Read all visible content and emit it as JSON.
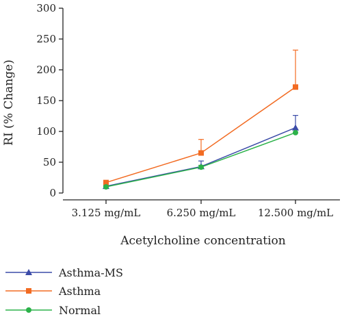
{
  "chart_data": {
    "type": "line",
    "title": "",
    "xlabel": "Acetylcholine concentration",
    "ylabel": "RI (% Change)",
    "categories": [
      "3.125 mg/mL",
      "6.250 mg/mL",
      "12.500 mg/mL"
    ],
    "ylim": [
      0,
      300
    ],
    "yticks": [
      0,
      50,
      100,
      150,
      200,
      250,
      300
    ],
    "grid": false,
    "legend_position": "bottom-left",
    "series": [
      {
        "name": "Asthma-MS",
        "color": "#3b4ba8",
        "marker": "triangle",
        "values": [
          11,
          43,
          106
        ],
        "error": [
          1,
          9,
          20
        ]
      },
      {
        "name": "Asthma",
        "color": "#f26b22",
        "marker": "square",
        "values": [
          17,
          65,
          172
        ],
        "error": [
          2,
          22,
          60
        ]
      },
      {
        "name": "Normal",
        "color": "#2cb24a",
        "marker": "circle",
        "values": [
          10,
          42,
          98
        ],
        "error": [
          1,
          3,
          5
        ]
      }
    ]
  }
}
